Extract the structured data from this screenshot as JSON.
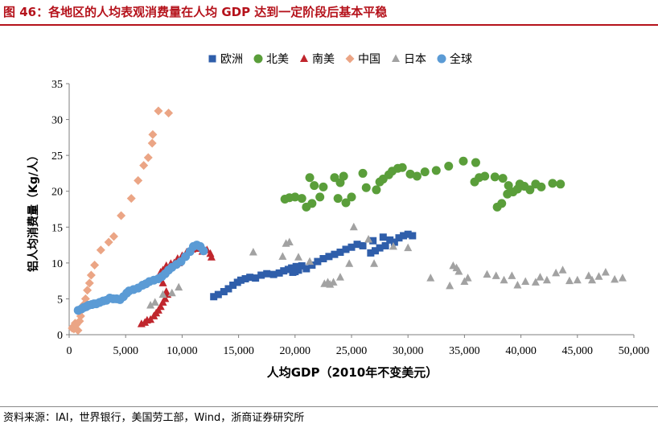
{
  "figure": {
    "title": "图 46：各地区的人均表观消费量在人均 GDP 达到一定阶段后基本平稳",
    "source": "资料来源：IAI，世界银行，美国劳工部，Wind，浙商证券研究所"
  },
  "chart_data": {
    "type": "scatter",
    "title": "各地区的人均表观消费量在人均 GDP 达到一定阶段后基本平稳",
    "xlabel": "人均GDP（2010年不变美元）",
    "ylabel": "铝人均消费量（Kg/人）",
    "xlim": [
      0,
      50000
    ],
    "ylim": [
      0,
      35
    ],
    "xticks": [
      0,
      5000,
      10000,
      15000,
      20000,
      25000,
      30000,
      35000,
      40000,
      45000,
      50000
    ],
    "xtick_labels": [
      "0",
      "5,000",
      "10,000",
      "15,000",
      "20,000",
      "25,000",
      "30,000",
      "35,000",
      "40,000",
      "45,000",
      "50,000"
    ],
    "yticks": [
      0,
      5,
      10,
      15,
      20,
      25,
      30,
      35
    ],
    "ytick_labels": [
      "0",
      "5",
      "10",
      "15",
      "20",
      "25",
      "30",
      "35"
    ],
    "legend_position": "top-center",
    "series": [
      {
        "name": "欧洲",
        "marker": "square",
        "color": "#2f5eaa",
        "points": [
          [
            12800,
            5.3
          ],
          [
            13200,
            5.6
          ],
          [
            13700,
            6.0
          ],
          [
            14100,
            6.4
          ],
          [
            14500,
            6.9
          ],
          [
            14900,
            7.3
          ],
          [
            15200,
            7.6
          ],
          [
            15600,
            7.8
          ],
          [
            16000,
            8.0
          ],
          [
            16500,
            7.9
          ],
          [
            17000,
            8.3
          ],
          [
            17500,
            8.5
          ],
          [
            18100,
            8.4
          ],
          [
            18600,
            8.6
          ],
          [
            19000,
            8.9
          ],
          [
            19400,
            9.1
          ],
          [
            19700,
            9.3
          ],
          [
            20000,
            8.8
          ],
          [
            20300,
            9.0
          ],
          [
            20600,
            9.6
          ],
          [
            20100,
            9.5
          ],
          [
            19800,
            8.7
          ],
          [
            21000,
            9.2
          ],
          [
            21500,
            9.7
          ],
          [
            22000,
            10.2
          ],
          [
            22500,
            10.6
          ],
          [
            23000,
            10.9
          ],
          [
            23500,
            11.2
          ],
          [
            24000,
            11.5
          ],
          [
            24500,
            11.9
          ],
          [
            25000,
            12.2
          ],
          [
            25500,
            12.6
          ],
          [
            26000,
            12.4
          ],
          [
            26700,
            11.4
          ],
          [
            27100,
            11.7
          ],
          [
            27500,
            12.1
          ],
          [
            28000,
            12.4
          ],
          [
            28400,
            13.2
          ],
          [
            28800,
            12.9
          ],
          [
            29200,
            13.5
          ],
          [
            29600,
            13.8
          ],
          [
            30000,
            14.0
          ],
          [
            30400,
            13.8
          ],
          [
            27800,
            13.6
          ],
          [
            26900,
            13.1
          ]
        ]
      },
      {
        "name": "北美",
        "marker": "circle",
        "color": "#5a9e3a",
        "points": [
          [
            19100,
            18.9
          ],
          [
            19500,
            19.1
          ],
          [
            20000,
            19.2
          ],
          [
            20600,
            19.0
          ],
          [
            21000,
            17.8
          ],
          [
            21500,
            18.3
          ],
          [
            22200,
            19.2
          ],
          [
            21700,
            20.8
          ],
          [
            22500,
            20.6
          ],
          [
            21300,
            21.9
          ],
          [
            23500,
            21.9
          ],
          [
            24000,
            21.2
          ],
          [
            24300,
            22.1
          ],
          [
            23800,
            19.0
          ],
          [
            24500,
            18.4
          ],
          [
            25000,
            19.2
          ],
          [
            26000,
            22.5
          ],
          [
            26300,
            20.5
          ],
          [
            27200,
            20.2
          ],
          [
            27500,
            21.3
          ],
          [
            27800,
            21.7
          ],
          [
            28300,
            22.3
          ],
          [
            28600,
            22.8
          ],
          [
            29100,
            23.2
          ],
          [
            29500,
            23.3
          ],
          [
            30200,
            22.4
          ],
          [
            30800,
            22.1
          ],
          [
            31500,
            22.7
          ],
          [
            32500,
            22.9
          ],
          [
            33600,
            23.5
          ],
          [
            34900,
            24.2
          ],
          [
            36000,
            24.0
          ],
          [
            35900,
            21.3
          ],
          [
            36300,
            21.9
          ],
          [
            36800,
            22.1
          ],
          [
            37700,
            22.0
          ],
          [
            38400,
            21.8
          ],
          [
            38900,
            20.8
          ],
          [
            37900,
            17.8
          ],
          [
            38300,
            18.3
          ],
          [
            38800,
            19.6
          ],
          [
            39300,
            19.9
          ],
          [
            39700,
            20.3
          ],
          [
            39900,
            21.0
          ],
          [
            40300,
            20.7
          ],
          [
            40800,
            20.2
          ],
          [
            41300,
            21.0
          ],
          [
            41800,
            20.6
          ],
          [
            42800,
            21.1
          ],
          [
            43500,
            21.0
          ]
        ]
      },
      {
        "name": "南美",
        "marker": "triangle",
        "color": "#c0262d",
        "points": [
          [
            6400,
            1.5
          ],
          [
            6700,
            1.7
          ],
          [
            6900,
            2.0
          ],
          [
            7200,
            2.1
          ],
          [
            7500,
            2.6
          ],
          [
            7700,
            3.0
          ],
          [
            7900,
            3.4
          ],
          [
            8100,
            3.9
          ],
          [
            8300,
            4.5
          ],
          [
            8500,
            5.0
          ],
          [
            8700,
            5.6
          ],
          [
            8600,
            6.0
          ],
          [
            8300,
            7.2
          ],
          [
            8000,
            8.1
          ],
          [
            8100,
            8.7
          ],
          [
            8300,
            9.0
          ],
          [
            8600,
            9.6
          ],
          [
            9000,
            9.9
          ],
          [
            9300,
            10.0
          ],
          [
            9600,
            10.6
          ],
          [
            9700,
            10.0
          ],
          [
            10000,
            11.0
          ],
          [
            10400,
            11.5
          ],
          [
            10900,
            11.9
          ],
          [
            11400,
            12.0
          ],
          [
            11800,
            11.6
          ],
          [
            12200,
            11.8
          ],
          [
            12500,
            11.3
          ],
          [
            12600,
            10.8
          ]
        ]
      },
      {
        "name": "中国",
        "marker": "diamond",
        "color": "#eba585",
        "points": [
          [
            270,
            0.9
          ],
          [
            330,
            1.1
          ],
          [
            420,
            0.8
          ],
          [
            530,
            1.6
          ],
          [
            640,
            1.4
          ],
          [
            780,
            0.6
          ],
          [
            920,
            1.9
          ],
          [
            1020,
            2.6
          ],
          [
            1150,
            3.5
          ],
          [
            1300,
            4.2
          ],
          [
            1450,
            5.0
          ],
          [
            1610,
            6.2
          ],
          [
            1800,
            7.2
          ],
          [
            1950,
            8.3
          ],
          [
            2250,
            9.7
          ],
          [
            2800,
            11.8
          ],
          [
            3500,
            12.9
          ],
          [
            3950,
            13.7
          ],
          [
            4600,
            16.6
          ],
          [
            5500,
            19.0
          ],
          [
            6100,
            21.5
          ],
          [
            6600,
            23.6
          ],
          [
            7000,
            24.7
          ],
          [
            7350,
            26.7
          ],
          [
            7400,
            27.9
          ],
          [
            7900,
            31.2
          ],
          [
            8800,
            30.9
          ]
        ]
      },
      {
        "name": "日本",
        "marker": "triangle",
        "color": "#a2a2a2",
        "points": [
          [
            7200,
            4.1
          ],
          [
            7600,
            4.5
          ],
          [
            8300,
            5.6
          ],
          [
            9100,
            5.8
          ],
          [
            9700,
            6.6
          ],
          [
            16300,
            11.5
          ],
          [
            18900,
            10.9
          ],
          [
            19200,
            12.7
          ],
          [
            19500,
            12.9
          ],
          [
            20300,
            10.8
          ],
          [
            21300,
            10.2
          ],
          [
            22600,
            7.1
          ],
          [
            22900,
            7.3
          ],
          [
            23100,
            7.0
          ],
          [
            23400,
            7.3
          ],
          [
            24000,
            8.0
          ],
          [
            24800,
            9.9
          ],
          [
            25200,
            15.0
          ],
          [
            26500,
            13.3
          ],
          [
            27000,
            9.9
          ],
          [
            28700,
            12.3
          ],
          [
            30000,
            12.1
          ],
          [
            32000,
            7.9
          ],
          [
            33700,
            6.8
          ],
          [
            34000,
            9.6
          ],
          [
            34300,
            9.3
          ],
          [
            34500,
            8.8
          ],
          [
            35000,
            7.4
          ],
          [
            35300,
            7.9
          ],
          [
            37000,
            8.4
          ],
          [
            37800,
            8.2
          ],
          [
            38500,
            7.6
          ],
          [
            39200,
            8.2
          ],
          [
            39700,
            6.9
          ],
          [
            40400,
            7.4
          ],
          [
            41300,
            7.3
          ],
          [
            41700,
            8.0
          ],
          [
            42300,
            7.6
          ],
          [
            43100,
            8.6
          ],
          [
            43700,
            9.0
          ],
          [
            44300,
            7.5
          ],
          [
            45000,
            7.6
          ],
          [
            46000,
            8.2
          ],
          [
            46300,
            7.6
          ],
          [
            46900,
            8.1
          ],
          [
            47500,
            8.7
          ],
          [
            48300,
            7.7
          ],
          [
            49000,
            7.9
          ]
        ]
      },
      {
        "name": "全球",
        "marker": "circle",
        "color": "#5b9bd5",
        "points": [
          [
            800,
            3.4
          ],
          [
            1100,
            3.6
          ],
          [
            1300,
            3.8
          ],
          [
            1500,
            3.9
          ],
          [
            1700,
            4.1
          ],
          [
            2000,
            4.2
          ],
          [
            2200,
            4.3
          ],
          [
            2400,
            4.3
          ],
          [
            2700,
            4.5
          ],
          [
            3000,
            4.7
          ],
          [
            3300,
            4.8
          ],
          [
            3600,
            5.1
          ],
          [
            3900,
            5.0
          ],
          [
            4200,
            5.0
          ],
          [
            4500,
            4.9
          ],
          [
            4800,
            5.3
          ],
          [
            5100,
            5.8
          ],
          [
            5300,
            6.1
          ],
          [
            5700,
            6.3
          ],
          [
            6100,
            6.5
          ],
          [
            6500,
            6.9
          ],
          [
            6800,
            7.1
          ],
          [
            7100,
            7.4
          ],
          [
            7500,
            7.6
          ],
          [
            7900,
            7.8
          ],
          [
            8200,
            8.1
          ],
          [
            8500,
            8.5
          ],
          [
            8800,
            9.0
          ],
          [
            9100,
            9.4
          ],
          [
            9500,
            9.8
          ],
          [
            9900,
            10.2
          ],
          [
            10300,
            10.9
          ],
          [
            10700,
            11.6
          ],
          [
            11000,
            12.3
          ],
          [
            11300,
            12.5
          ],
          [
            11600,
            12.3
          ],
          [
            11900,
            11.7
          ]
        ]
      }
    ]
  }
}
